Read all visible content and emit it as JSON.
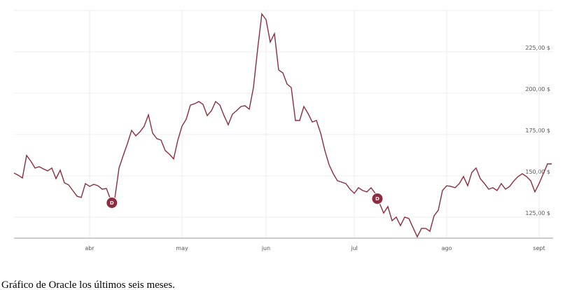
{
  "chart_data": {
    "type": "line",
    "caption": "Gráfico de Oracle los últimos seis meses.",
    "categories": [
      null,
      null,
      null,
      null,
      null,
      null,
      null,
      null,
      null,
      null,
      null,
      null,
      null,
      null,
      null,
      null,
      null,
      null,
      "abr",
      null,
      null,
      null,
      null,
      null,
      null,
      null,
      null,
      null,
      null,
      null,
      null,
      null,
      null,
      null,
      null,
      null,
      null,
      null,
      null,
      null,
      "may",
      null,
      null,
      null,
      null,
      null,
      null,
      null,
      null,
      null,
      null,
      null,
      null,
      null,
      null,
      null,
      null,
      null,
      null,
      null,
      "jun",
      null,
      null,
      null,
      null,
      null,
      null,
      null,
      null,
      null,
      null,
      null,
      null,
      null,
      null,
      null,
      null,
      null,
      null,
      null,
      null,
      "jul",
      null,
      null,
      null,
      null,
      null,
      null,
      null,
      null,
      null,
      null,
      null,
      null,
      null,
      null,
      null,
      null,
      null,
      null,
      null,
      null,
      null,
      "ago",
      null,
      null,
      null,
      null,
      null,
      null,
      null,
      null,
      null,
      null,
      null,
      null,
      null,
      null,
      null,
      null,
      null,
      null,
      null,
      null,
      null,
      "sept",
      null,
      null,
      null
    ],
    "series": [
      {
        "color": "#8b2d3e",
        "values": [
          151.7,
          150.4,
          148.7,
          162.3,
          158.9,
          154.7,
          155.5,
          154.2,
          153,
          154.7,
          148.3,
          153.4,
          145.8,
          144.5,
          141.1,
          137.7,
          136.9,
          145.3,
          143.6,
          144.9,
          144,
          141.9,
          142.4,
          135.6,
          136.4,
          154.7,
          162.3,
          169.5,
          177.5,
          174.2,
          176.7,
          180.1,
          186.9,
          175.8,
          172.5,
          171.6,
          165.3,
          163.1,
          160.2,
          171.6,
          180.1,
          184.3,
          192.8,
          193.6,
          194.9,
          193.2,
          186.4,
          189.4,
          194.9,
          192.8,
          186.4,
          180.9,
          187.3,
          189.4,
          191.9,
          192.4,
          190.3,
          203.4,
          226.7,
          247.9,
          244.5,
          230.9,
          236,
          214,
          212.3,
          205.5,
          203.4,
          183.5,
          183.5,
          191.9,
          187.7,
          182.6,
          183.5,
          175.8,
          165.3,
          156.8,
          151.3,
          147,
          146.2,
          145.3,
          141.9,
          139.4,
          142.8,
          141.1,
          140.3,
          142.8,
          139.4,
          133.5,
          127.5,
          131.4,
          122.9,
          125,
          119.9,
          125,
          124.2,
          118.6,
          113.1,
          118.2,
          118.2,
          116.5,
          125.8,
          129.2,
          141.1,
          144,
          143.6,
          142.8,
          145.3,
          149.6,
          144,
          152.1,
          154.7,
          148.3,
          145.3,
          141.9,
          142.8,
          141.1,
          145.3,
          141.9,
          143.6,
          147,
          149.6,
          151.3,
          149.6,
          147,
          140.3,
          145.3,
          151.3,
          157.2,
          157.2
        ]
      }
    ],
    "annotations": [
      {
        "text": "D",
        "x": 23.3,
        "y": 133.7
      },
      {
        "text": "D",
        "x": 86.5,
        "y": 136.2
      }
    ],
    "ylim": [
      112.3,
      250
    ],
    "yticks": [
      {
        "value": 125,
        "label": "125,00 $"
      },
      {
        "value": 150,
        "label": "150,00 $"
      },
      {
        "value": 175,
        "label": "175,00 $"
      },
      {
        "value": 200,
        "label": "200,00 $"
      },
      {
        "value": 225,
        "label": "225,00 $"
      }
    ],
    "grid": true
  }
}
